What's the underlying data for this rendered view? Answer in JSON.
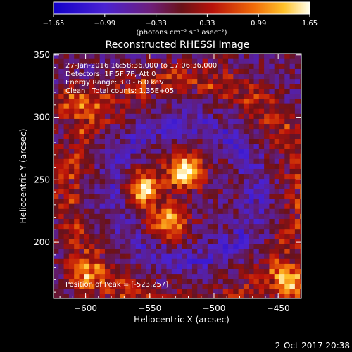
{
  "colorbar": {
    "ticks": [
      "-1.65",
      "-0.99",
      "-0.33",
      "0.33",
      "0.99",
      "1.65"
    ],
    "units": "(photons cm⁻² s⁻¹ asec⁻²)",
    "range": [
      -1.65,
      1.65
    ]
  },
  "chart_data": {
    "type": "heatmap",
    "title": "Reconstructed RHESSI Image",
    "xlabel": "Heliocentric X (arcsec)",
    "ylabel": "Heliocentric Y (arcsec)",
    "xlim": [
      -625,
      -432
    ],
    "ylim": [
      155,
      351
    ],
    "x_ticks": [
      -600,
      -550,
      -500,
      -450
    ],
    "y_ticks": [
      200,
      250,
      300,
      350
    ],
    "x_tick_labels": [
      "−600",
      "−550",
      "−500",
      "−450"
    ],
    "y_tick_labels": [
      "200",
      "250",
      "300",
      "350"
    ],
    "grid": false,
    "sources": [
      {
        "x": -523,
        "y": 257,
        "peak": 1.65
      },
      {
        "x": -555,
        "y": 243,
        "peak": 1.45
      },
      {
        "x": -535,
        "y": 217,
        "peak": 1.2
      },
      {
        "x": -440,
        "y": 168,
        "peak": 1.25
      },
      {
        "x": -608,
        "y": 312,
        "peak": 0.9
      },
      {
        "x": -600,
        "y": 172,
        "peak": 0.8
      }
    ]
  },
  "annotations": {
    "time_range": "27-Jan-2016 16:58:36.000 to 17:06:36.000",
    "detectors": "Detectors: 1F 5F 7F, Att 0",
    "energy": "Energy Range: 3.0 - 6.0 keV",
    "clean": "Clean   Total counts: 1.35E+05",
    "peak": "Position of Peak = [-523,257]"
  },
  "footer": {
    "timestamp": "2-Oct-2017 20:38"
  }
}
